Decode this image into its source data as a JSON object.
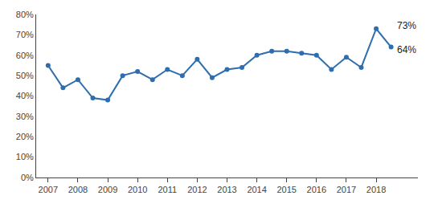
{
  "chart_data": {
    "type": "line",
    "x": [
      2007,
      2007.5,
      2008,
      2008.5,
      2009,
      2009.5,
      2010,
      2010.5,
      2011,
      2011.5,
      2012,
      2012.5,
      2013,
      2013.5,
      2014,
      2014.5,
      2015,
      2015.5,
      2016,
      2016.5,
      2017,
      2017.5,
      2018,
      2018.5
    ],
    "values": [
      0.55,
      0.44,
      0.48,
      0.39,
      0.38,
      0.5,
      0.52,
      0.48,
      0.53,
      0.5,
      0.58,
      0.49,
      0.53,
      0.54,
      0.6,
      0.62,
      0.62,
      0.61,
      0.6,
      0.53,
      0.59,
      0.54,
      0.73,
      0.64
    ],
    "color": "#2E6EAE",
    "marker": "circle",
    "xlim": [
      2006.6,
      2019.4
    ],
    "xticks": [
      2007,
      2008,
      2009,
      2010,
      2011,
      2012,
      2013,
      2014,
      2015,
      2016,
      2017,
      2018
    ],
    "ylim": [
      0.0,
      0.8
    ],
    "yticks": [
      {
        "value": 0.0,
        "label": "0%"
      },
      {
        "value": 0.1,
        "label": "10%"
      },
      {
        "value": 0.2,
        "label": "20%"
      },
      {
        "value": 0.3,
        "label": "30%"
      },
      {
        "value": 0.4,
        "label": "40%"
      },
      {
        "value": 0.5,
        "label": "50%"
      },
      {
        "value": 0.6,
        "label": "60%"
      },
      {
        "value": 0.7,
        "label": "70%"
      },
      {
        "value": 0.8,
        "label": "80%"
      }
    ],
    "grid": false,
    "annotations": [
      {
        "text": "73%",
        "x": 2018.55,
        "y": 0.745
      },
      {
        "text": "64%",
        "x": 2018.55,
        "y": 0.625
      }
    ]
  }
}
